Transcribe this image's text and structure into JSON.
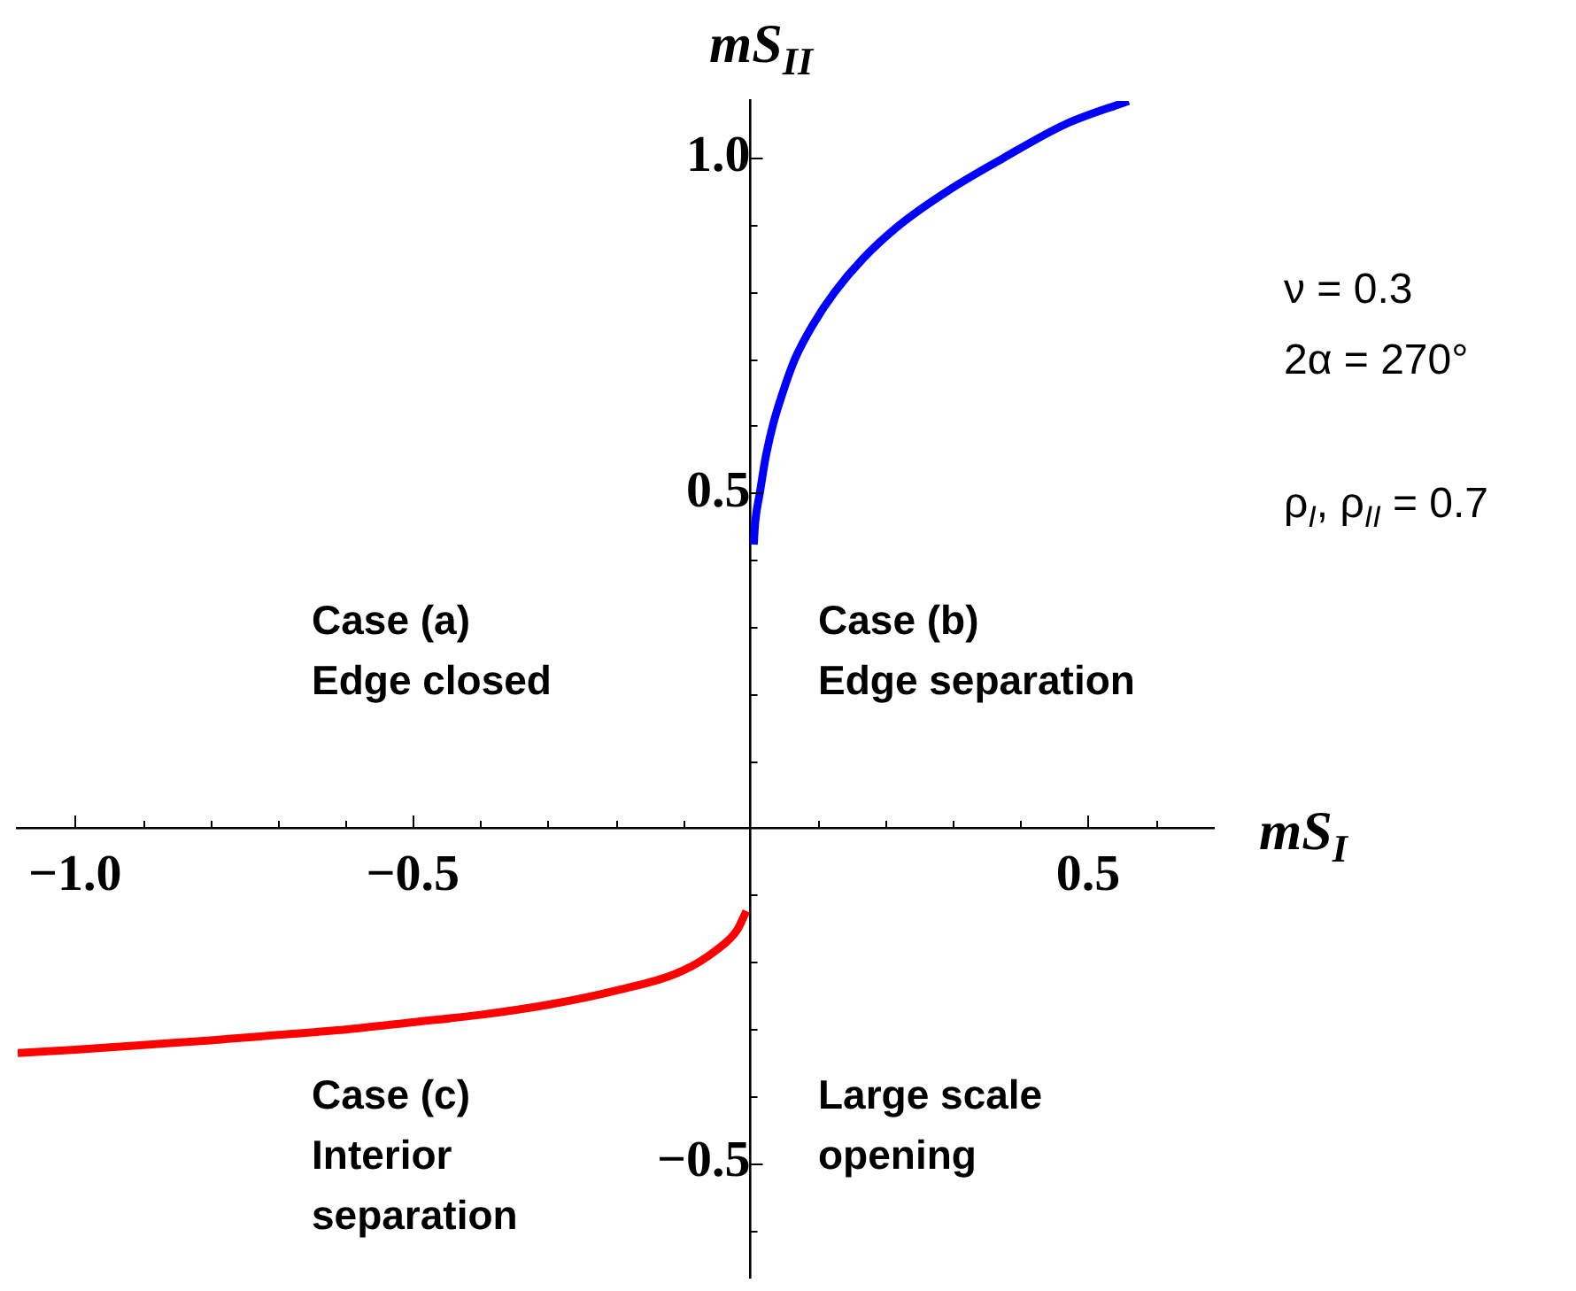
{
  "chart_data": {
    "type": "line",
    "xlabel": "mS$_{I}$",
    "ylabel": "mS$_{II}$",
    "series": [
      {
        "color": "#0000ff",
        "x": [
          0.005,
          0.007,
          0.014,
          0.022,
          0.033,
          0.048,
          0.066,
          0.092,
          0.125,
          0.167,
          0.221,
          0.291,
          0.375,
          0.466,
          0.56
        ],
        "values": [
          0.423,
          0.455,
          0.5,
          0.55,
          0.6,
          0.65,
          0.7,
          0.75,
          0.8,
          0.85,
          0.9,
          0.95,
          1.0,
          1.05,
          1.085
        ]
      },
      {
        "color": "#ff0000",
        "x": [
          -1.085,
          -1.0,
          -0.9,
          -0.8,
          -0.7,
          -0.6,
          -0.5,
          -0.4,
          -0.3,
          -0.2,
          -0.1,
          -0.05,
          -0.02,
          -0.006
        ],
        "values": [
          -0.336,
          -0.331,
          -0.324,
          -0.317,
          -0.309,
          -0.301,
          -0.29,
          -0.279,
          -0.264,
          -0.243,
          -0.213,
          -0.182,
          -0.153,
          -0.124
        ]
      }
    ],
    "xlim": [
      -1.085,
      0.685
    ],
    "ylim": [
      -0.67,
      1.085
    ],
    "xticks": [
      {
        "value": -1.0,
        "label": "−1.0"
      },
      {
        "value": -0.9,
        "label": null
      },
      {
        "value": -0.8,
        "label": null
      },
      {
        "value": -0.7,
        "label": null
      },
      {
        "value": -0.6,
        "label": null
      },
      {
        "value": -0.5,
        "label": "−0.5"
      },
      {
        "value": -0.4,
        "label": null
      },
      {
        "value": -0.3,
        "label": null
      },
      {
        "value": -0.2,
        "label": null
      },
      {
        "value": -0.1,
        "label": null
      },
      {
        "value": 0.1,
        "label": null
      },
      {
        "value": 0.2,
        "label": null
      },
      {
        "value": 0.3,
        "label": null
      },
      {
        "value": 0.4,
        "label": null
      },
      0.5,
      {
        "value": 0.6,
        "label": null
      }
    ],
    "yticks": [
      {
        "value": -0.6,
        "label": null
      },
      {
        "value": -0.5,
        "label": "−0.5"
      },
      {
        "value": -0.4,
        "label": null
      },
      {
        "value": -0.3,
        "label": null
      },
      {
        "value": -0.2,
        "label": null
      },
      {
        "value": -0.1,
        "label": null
      },
      {
        "value": 0.1,
        "label": null
      },
      {
        "value": 0.2,
        "label": null
      },
      {
        "value": 0.3,
        "label": null
      },
      {
        "value": 0.4,
        "label": null
      },
      0.5,
      {
        "value": 0.6,
        "label": null
      },
      {
        "value": 0.7,
        "label": null
      },
      {
        "value": 0.8,
        "label": null
      },
      {
        "value": 0.9,
        "label": null
      },
      {
        "value": 1.0,
        "label": "1.0"
      }
    ],
    "annotations": [
      "Case (a)\nEdge closed",
      "Case (b)\nEdge separation",
      "Case (c)\nInterior\nseparation",
      "Large scale\nopening",
      "ν = 0.3",
      "2α = 270°",
      "ρ$_{I}$, ρ$_{II}$ = 0.7"
    ]
  }
}
